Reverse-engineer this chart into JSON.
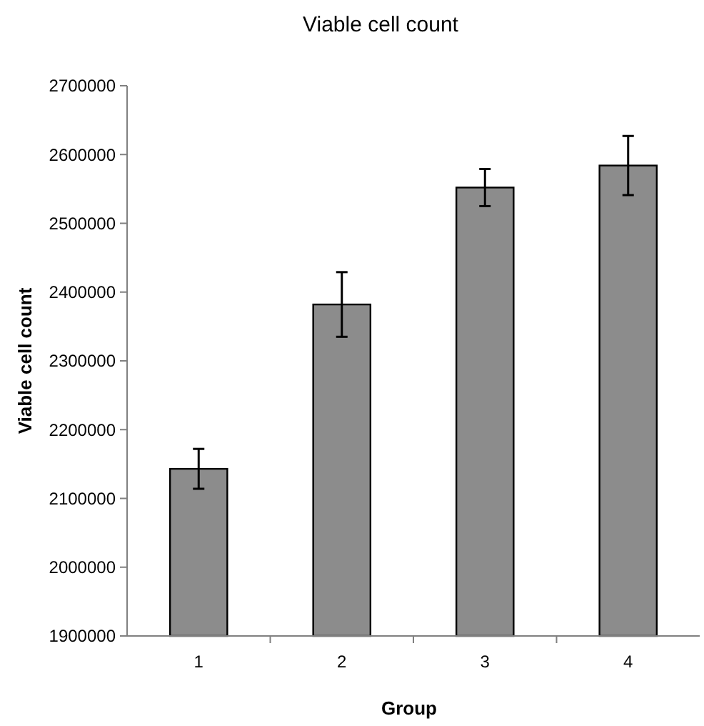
{
  "chart_data": {
    "type": "bar",
    "title": "Viable cell count",
    "xlabel": "Group",
    "ylabel": "Viable cell count",
    "categories": [
      "1",
      "2",
      "3",
      "4"
    ],
    "values": [
      2143000,
      2382000,
      2552000,
      2584000
    ],
    "errors": [
      29000,
      47000,
      27000,
      43000
    ],
    "color": "#8c8c8c",
    "ylim": [
      1900000,
      2700000
    ],
    "yticks": [
      1900000,
      2000000,
      2100000,
      2200000,
      2300000,
      2400000,
      2500000,
      2600000,
      2700000
    ],
    "grid": false
  }
}
